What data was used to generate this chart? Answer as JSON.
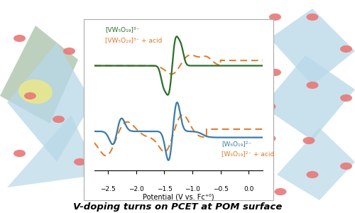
{
  "title": "V-doping turns on PCET at POM surface",
  "xlabel": "Potential (V vs. Fc⁺⁰)",
  "xlim": [
    -2.75,
    0.25
  ],
  "xticks": [
    -2.5,
    -2.0,
    -1.5,
    -1.0,
    -0.5,
    0.0
  ],
  "green_color": "#2a6e2a",
  "blue_color": "#3a7ca8",
  "orange_color": "#e07828",
  "panel_bg": "#ffffff",
  "label_top_green": "[VW₅O₁₉]³⁻",
  "label_top_orange": "[VW₅O₁₉]³⁻ + acid",
  "label_bot_blue": "[W₆O₁₉]²⁻",
  "label_bot_orange": "[W₆O₁₉]²⁻ + acid",
  "bg_poly_color": "#b8d8e8",
  "bg_green_color": "#b8ccb0",
  "bg_yellow_color": "#ece888",
  "atom_color": "#e87878"
}
